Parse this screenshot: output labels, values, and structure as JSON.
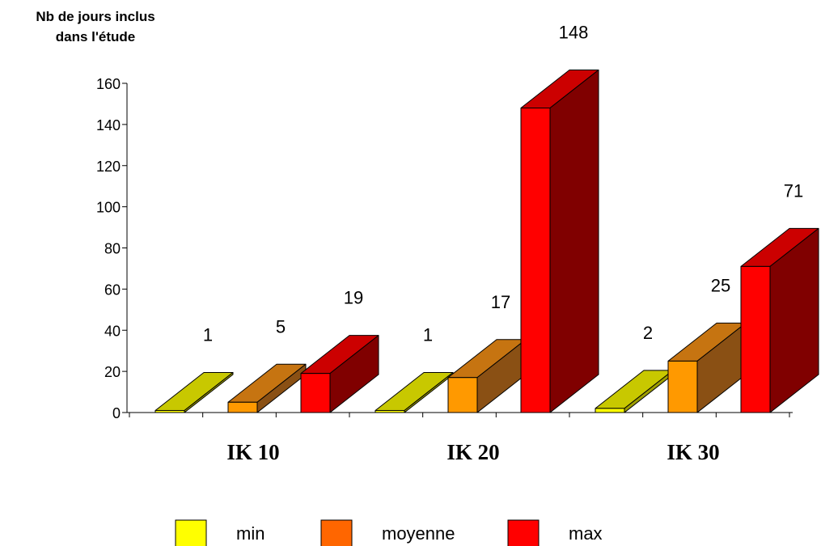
{
  "chart_data": {
    "type": "bar",
    "style": "3d-clustered",
    "ylabel_lines": [
      "Nb de jours inclus",
      "dans l'étude"
    ],
    "ylim": [
      0,
      160
    ],
    "yticks": [
      "0",
      "20",
      "40",
      "60",
      "80",
      "100",
      "120",
      "140",
      "160"
    ],
    "categories": [
      "IK 10",
      "IK 20",
      "IK 30"
    ],
    "series": [
      {
        "name": "min",
        "values": [
          1,
          1,
          2
        ],
        "labels": [
          "1",
          "1",
          "2"
        ],
        "front": "#ffff00",
        "top": "#c8c800",
        "side": "#9e9e00",
        "legend": "#ffff00"
      },
      {
        "name": "moyenne",
        "values": [
          5,
          17,
          25
        ],
        "labels": [
          "5",
          "17",
          "25"
        ],
        "front": "#ff9900",
        "top": "#c67411",
        "side": "#8a5014",
        "legend": "#ff6600"
      },
      {
        "name": "max",
        "values": [
          19,
          148,
          71
        ],
        "labels": [
          "19",
          "148",
          "71"
        ],
        "front": "#ff0000",
        "top": "#cc0000",
        "side": "#800000",
        "legend": "#ff0000"
      }
    ],
    "legend_position": "bottom",
    "grid": false
  }
}
